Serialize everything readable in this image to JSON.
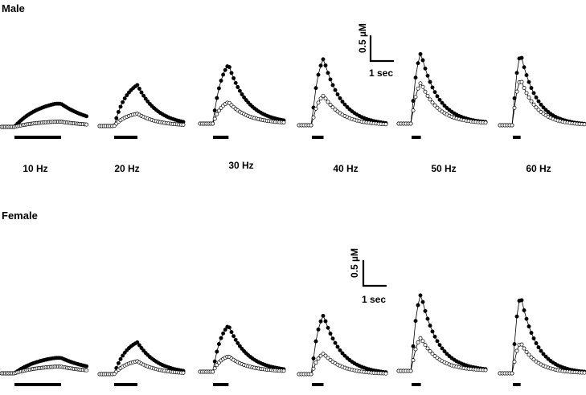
{
  "chart_data": {
    "type": "line",
    "panels": [
      {
        "label": "Male",
        "scalebar": {
          "y_label": "0.5 µM",
          "x_label": "1 sec",
          "y_value_uM": 0.5,
          "x_value_sec": 1
        },
        "traces": [
          {
            "frequency": "10 Hz",
            "stim_duration_sec": 2.0,
            "peak_filled_uM": 0.45,
            "peak_open_uM": 0.1
          },
          {
            "frequency": "20 Hz",
            "stim_duration_sec": 1.0,
            "peak_filled_uM": 0.8,
            "peak_open_uM": 0.24
          },
          {
            "frequency": "30 Hz",
            "stim_duration_sec": 0.667,
            "peak_filled_uM": 1.15,
            "peak_open_uM": 0.42
          },
          {
            "frequency": "40 Hz",
            "stim_duration_sec": 0.5,
            "peak_filled_uM": 1.3,
            "peak_open_uM": 0.58
          },
          {
            "frequency": "50 Hz",
            "stim_duration_sec": 0.4,
            "peak_filled_uM": 1.38,
            "peak_open_uM": 0.8
          },
          {
            "frequency": "60 Hz",
            "stim_duration_sec": 0.333,
            "peak_filled_uM": 1.4,
            "peak_open_uM": 0.9
          }
        ]
      },
      {
        "label": "Female",
        "scalebar": {
          "y_label": "0.5 µM",
          "x_label": "1 sec",
          "y_value_uM": 0.5,
          "x_value_sec": 1
        },
        "traces": [
          {
            "frequency": "10 Hz",
            "stim_duration_sec": 2.0,
            "peak_filled_uM": 0.3,
            "peak_open_uM": 0.13
          },
          {
            "frequency": "20 Hz",
            "stim_duration_sec": 1.0,
            "peak_filled_uM": 0.62,
            "peak_open_uM": 0.25
          },
          {
            "frequency": "30 Hz",
            "stim_duration_sec": 0.667,
            "peak_filled_uM": 0.9,
            "peak_open_uM": 0.3
          },
          {
            "frequency": "40 Hz",
            "stim_duration_sec": 0.5,
            "peak_filled_uM": 1.15,
            "peak_open_uM": 0.4
          },
          {
            "frequency": "50 Hz",
            "stim_duration_sec": 0.4,
            "peak_filled_uM": 1.5,
            "peak_open_uM": 0.65
          },
          {
            "frequency": "60 Hz",
            "stim_duration_sec": 0.333,
            "peak_filled_uM": 1.52,
            "peak_open_uM": 0.6
          }
        ]
      }
    ],
    "frequency_labels": [
      "10 Hz",
      "20 Hz",
      "30 Hz",
      "40 Hz",
      "50 Hz",
      "60 Hz"
    ],
    "marker_styles": {
      "series_a": "filled-circle",
      "series_b": "open-circle"
    },
    "colors": {
      "ink": "#000000",
      "open_fill": "#ffffff"
    },
    "grid": false
  }
}
